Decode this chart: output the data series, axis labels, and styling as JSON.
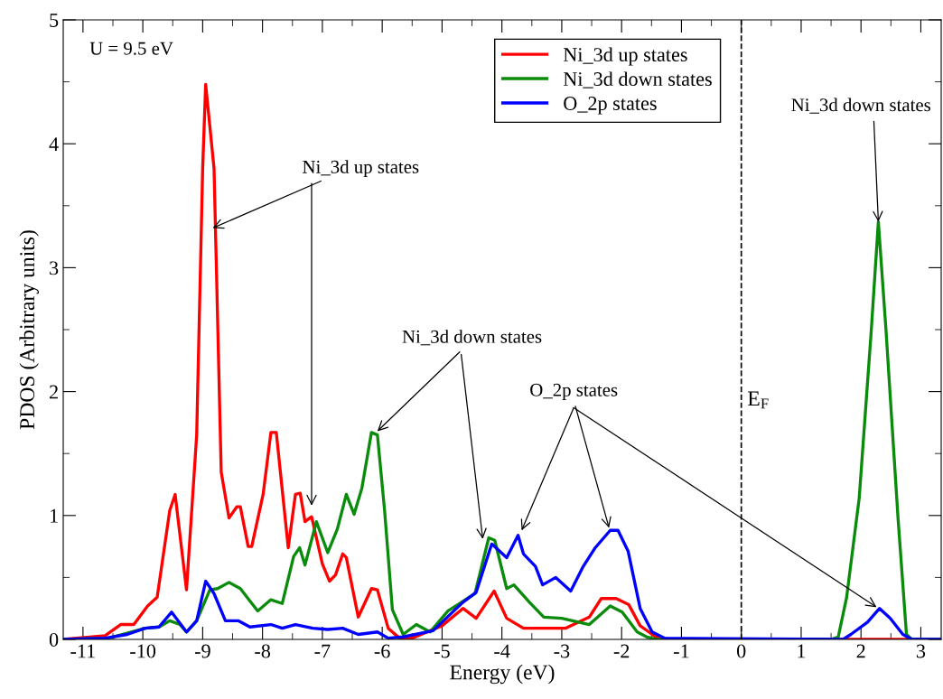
{
  "chart_data": {
    "type": "line",
    "xlabel": "Energy (eV)",
    "ylabel": "PDOS (Arbitrary units)",
    "xlim": [
      -11.33,
      3.34
    ],
    "xticks": [
      -11,
      -10,
      -9,
      -8,
      -7,
      -6,
      -5,
      -4,
      -3,
      -2,
      -1,
      0,
      1,
      2,
      3
    ],
    "ylim": [
      0,
      5
    ],
    "yticks": [
      0,
      1,
      2,
      3,
      4,
      5
    ],
    "grid": false,
    "legend": "top",
    "line_style": "solid",
    "marker": "none",
    "series": [
      {
        "name": "Ni_3d up states",
        "color": "#ff0000",
        "x": [
          -11.33,
          -10.63,
          -10.37,
          -10.15,
          -9.92,
          -9.76,
          -9.55,
          -9.46,
          -9.27,
          -9.1,
          -9.0,
          -8.95,
          -8.81,
          -8.69,
          -8.56,
          -8.43,
          -8.37,
          -8.24,
          -8.18,
          -7.99,
          -7.86,
          -7.77,
          -7.57,
          -7.45,
          -7.37,
          -7.29,
          -7.18,
          -7.0,
          -6.88,
          -6.78,
          -6.66,
          -6.6,
          -6.4,
          -6.18,
          -6.08,
          -5.9,
          -5.71,
          -5.5,
          -5.0,
          -4.65,
          -4.43,
          -4.13,
          -3.92,
          -3.64,
          -2.94,
          -2.54,
          -2.34,
          -2.09,
          -1.88,
          -1.69,
          -1.43,
          -1.2,
          3.34
        ],
        "values": [
          0,
          0.03,
          0.12,
          0.12,
          0.27,
          0.34,
          1.04,
          1.17,
          0.4,
          1.65,
          3.8,
          4.48,
          3.8,
          1.35,
          0.98,
          1.07,
          1.07,
          0.75,
          0.75,
          1.17,
          1.67,
          1.67,
          0.74,
          1.17,
          1.18,
          0.95,
          0.99,
          0.61,
          0.47,
          0.52,
          0.69,
          0.66,
          0.18,
          0.41,
          0.4,
          0.09,
          0.01,
          0.01,
          0.11,
          0.25,
          0.17,
          0.39,
          0.17,
          0.09,
          0.09,
          0.18,
          0.33,
          0.33,
          0.28,
          0.11,
          0.02,
          0,
          0
        ]
      },
      {
        "name": "Ni_3d down states",
        "color": "#0b8b0b",
        "x": [
          -11.33,
          -10.57,
          -9.96,
          -9.73,
          -9.55,
          -9.38,
          -9.27,
          -9.1,
          -8.88,
          -8.75,
          -8.56,
          -8.37,
          -8.21,
          -8.08,
          -7.86,
          -7.67,
          -7.48,
          -7.38,
          -7.29,
          -7.1,
          -6.91,
          -6.75,
          -6.6,
          -6.47,
          -6.34,
          -6.18,
          -6.08,
          -5.96,
          -5.83,
          -5.65,
          -5.43,
          -5.2,
          -4.9,
          -4.45,
          -4.22,
          -4.12,
          -3.92,
          -3.8,
          -3.54,
          -3.3,
          -3.0,
          -2.54,
          -2.19,
          -1.99,
          -1.74,
          -1.58,
          -1.4,
          1.5,
          1.62,
          1.76,
          1.97,
          2.17,
          2.29,
          2.42,
          2.62,
          2.76,
          2.85,
          3.34
        ],
        "values": [
          0,
          0.01,
          0.09,
          0.1,
          0.15,
          0.12,
          0.06,
          0.15,
          0.4,
          0.41,
          0.46,
          0.41,
          0.31,
          0.23,
          0.32,
          0.29,
          0.67,
          0.74,
          0.6,
          0.95,
          0.7,
          0.89,
          1.17,
          1.01,
          1.22,
          1.67,
          1.65,
          1.04,
          0.24,
          0.04,
          0.12,
          0.06,
          0.23,
          0.37,
          0.82,
          0.8,
          0.41,
          0.44,
          0.3,
          0.18,
          0.17,
          0.12,
          0.27,
          0.22,
          0.06,
          0.02,
          0,
          0,
          0.02,
          0.34,
          1.14,
          2.48,
          3.37,
          2.48,
          0.97,
          0.04,
          0,
          0
        ]
      },
      {
        "name": "O_2p states",
        "color": "#0000ff",
        "x": [
          -11.33,
          -10.63,
          -10.26,
          -9.96,
          -9.73,
          -9.52,
          -9.27,
          -9.1,
          -8.95,
          -8.81,
          -8.62,
          -8.4,
          -8.21,
          -7.86,
          -7.67,
          -7.45,
          -7.16,
          -6.91,
          -6.66,
          -6.4,
          -6.08,
          -5.9,
          -5.65,
          -5.15,
          -4.65,
          -4.43,
          -4.17,
          -3.92,
          -3.73,
          -3.64,
          -3.44,
          -3.32,
          -3.1,
          -2.85,
          -2.64,
          -2.44,
          -2.19,
          -2.06,
          -1.89,
          -1.69,
          -1.49,
          -1.28,
          1.7,
          1.83,
          2.11,
          2.31,
          2.49,
          2.7,
          2.85,
          3.34
        ],
        "values": [
          0,
          0.01,
          0.04,
          0.09,
          0.1,
          0.22,
          0.06,
          0.15,
          0.47,
          0.37,
          0.15,
          0.15,
          0.1,
          0.12,
          0.09,
          0.12,
          0.09,
          0.08,
          0.09,
          0.04,
          0.06,
          0.01,
          0.02,
          0.07,
          0.3,
          0.38,
          0.77,
          0.66,
          0.84,
          0.69,
          0.59,
          0.44,
          0.5,
          0.39,
          0.59,
          0.74,
          0.88,
          0.88,
          0.71,
          0.25,
          0.06,
          0.01,
          0,
          0.04,
          0.14,
          0.25,
          0.17,
          0.04,
          0,
          0
        ]
      }
    ],
    "ref_lines": [
      {
        "axis": "x",
        "value": 0,
        "label": "E$_{F}$",
        "color": "#000000",
        "line_style": "dashed"
      }
    ],
    "annotations": [
      "U = 9.5 eV",
      {
        "text": "Ni_3d up states",
        "x": -8.83,
        "y": 3.32
      },
      {
        "text": "Ni_3d down states",
        "x": -6.08,
        "y": 1.68
      },
      {
        "text": "O_2p states",
        "x": -2.21,
        "y": 0.9
      },
      {
        "text": "Ni_3d down states",
        "x": 2.29,
        "y": 3.37
      }
    ]
  }
}
